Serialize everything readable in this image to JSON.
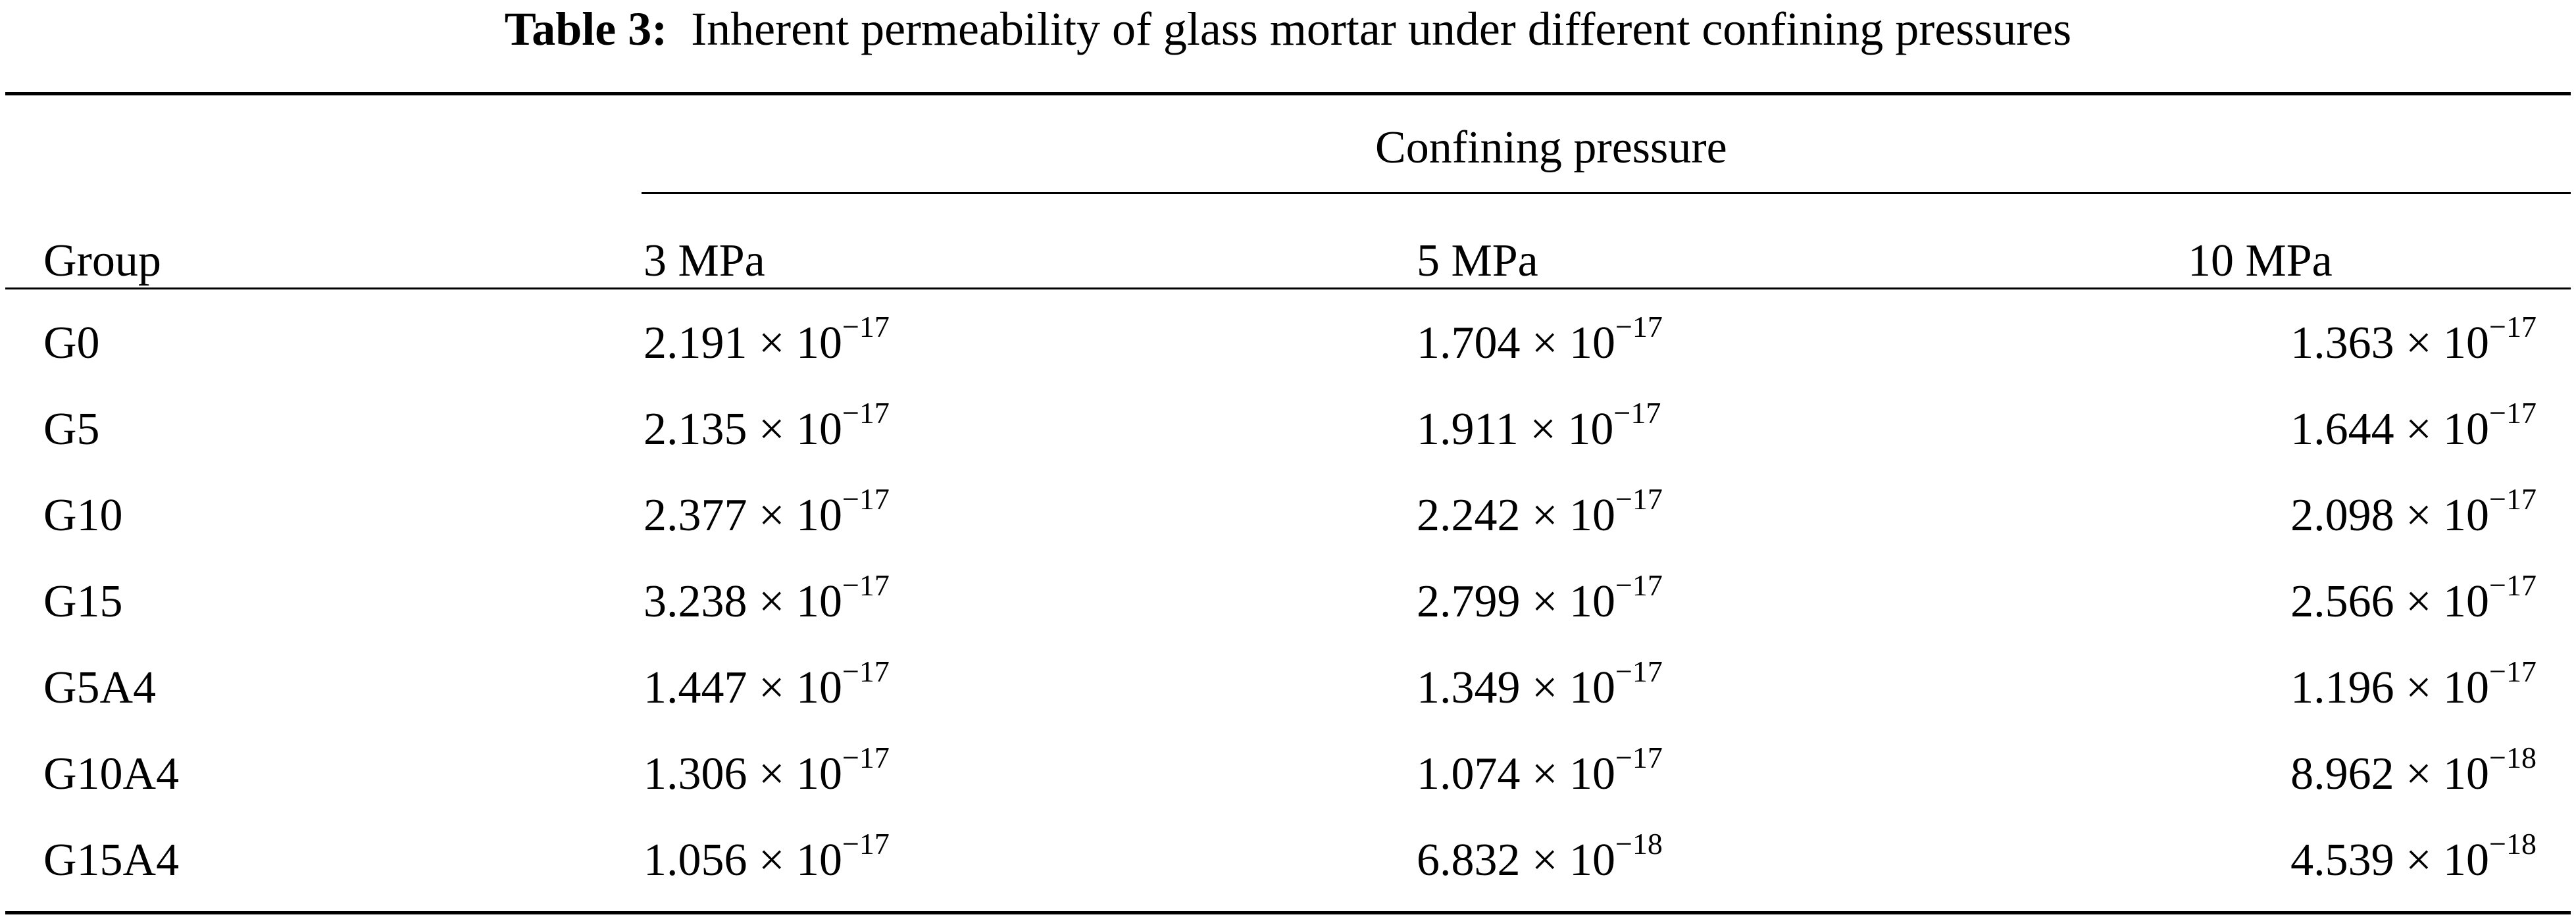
{
  "caption": {
    "label": "Table 3:",
    "text": "Inherent permeability of glass mortar under different confining pressures"
  },
  "table": {
    "group_header": "Confining pressure",
    "columns": [
      "Group",
      "3 MPa",
      "5 MPa",
      "10 MPa"
    ],
    "rows": [
      {
        "group": "G0",
        "cells": [
          {
            "m": "2.191",
            "e": "−17"
          },
          {
            "m": "1.704",
            "e": "−17"
          },
          {
            "m": "1.363",
            "e": "−17"
          }
        ]
      },
      {
        "group": "G5",
        "cells": [
          {
            "m": "2.135",
            "e": "−17"
          },
          {
            "m": "1.911",
            "e": "−17"
          },
          {
            "m": "1.644",
            "e": "−17"
          }
        ]
      },
      {
        "group": "G10",
        "cells": [
          {
            "m": "2.377",
            "e": "−17"
          },
          {
            "m": "2.242",
            "e": "−17"
          },
          {
            "m": "2.098",
            "e": "−17"
          }
        ]
      },
      {
        "group": "G15",
        "cells": [
          {
            "m": "3.238",
            "e": "−17"
          },
          {
            "m": "2.799",
            "e": "−17"
          },
          {
            "m": "2.566",
            "e": "−17"
          }
        ]
      },
      {
        "group": "G5A4",
        "cells": [
          {
            "m": "1.447",
            "e": "−17"
          },
          {
            "m": "1.349",
            "e": "−17"
          },
          {
            "m": "1.196",
            "e": "−17"
          }
        ]
      },
      {
        "group": "G10A4",
        "cells": [
          {
            "m": "1.306",
            "e": "−17"
          },
          {
            "m": "1.074",
            "e": "−17"
          },
          {
            "m": "8.962",
            "e": "−18"
          }
        ]
      },
      {
        "group": "G15A4",
        "cells": [
          {
            "m": "1.056",
            "e": "−17"
          },
          {
            "m": "6.832",
            "e": "−18"
          },
          {
            "m": "4.539",
            "e": "−18"
          }
        ]
      }
    ],
    "multiplier": "× 10"
  }
}
